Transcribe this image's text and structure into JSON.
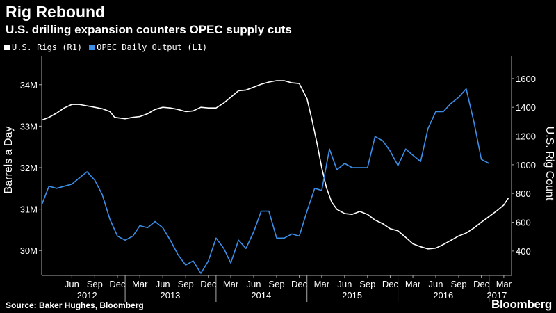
{
  "header": {
    "title": "Rig Rebound",
    "subtitle": "U.S. drilling expansion counters OPEC supply cuts"
  },
  "footer": {
    "source": "Source: Baker Hughes, Bloomberg",
    "brand": "Bloomberg"
  },
  "chart_data": {
    "type": "line",
    "title": "Rig Rebound",
    "subtitle": "U.S. drilling expansion counters OPEC supply cuts",
    "ylabel_left": "Barrels a Day",
    "ylabel_right": "U.S. Rig Count",
    "left_axis": {
      "range": [
        29.4,
        34.6
      ],
      "ticks": [
        30,
        31,
        32,
        33,
        34
      ],
      "tick_labels": [
        "30M",
        "31M",
        "32M",
        "33M",
        "34M"
      ]
    },
    "right_axis": {
      "range": [
        230,
        1730
      ],
      "ticks": [
        400,
        600,
        800,
        1000,
        1200,
        1400,
        1600
      ],
      "tick_labels": [
        "400",
        "600",
        "800",
        "1000",
        "1200",
        "1400",
        "1600"
      ]
    },
    "x_axis": {
      "range": [
        "2012-02",
        "2017-04"
      ],
      "month_ticks": [
        {
          "label": "Jun",
          "date": "2012-06"
        },
        {
          "label": "Sep",
          "date": "2012-09"
        },
        {
          "label": "Dec",
          "date": "2012-12"
        },
        {
          "label": "Mar",
          "date": "2013-03"
        },
        {
          "label": "Jun",
          "date": "2013-06"
        },
        {
          "label": "Sep",
          "date": "2013-09"
        },
        {
          "label": "Dec",
          "date": "2013-12"
        },
        {
          "label": "Mar",
          "date": "2014-03"
        },
        {
          "label": "Jun",
          "date": "2014-06"
        },
        {
          "label": "Sep",
          "date": "2014-09"
        },
        {
          "label": "Dec",
          "date": "2014-12"
        },
        {
          "label": "Mar",
          "date": "2015-03"
        },
        {
          "label": "Jun",
          "date": "2015-06"
        },
        {
          "label": "Sep",
          "date": "2015-09"
        },
        {
          "label": "Dec",
          "date": "2015-12"
        },
        {
          "label": "Mar",
          "date": "2016-03"
        },
        {
          "label": "Jun",
          "date": "2016-06"
        },
        {
          "label": "Sep",
          "date": "2016-09"
        },
        {
          "label": "Dec",
          "date": "2016-12"
        },
        {
          "label": "Mar",
          "date": "2017-03"
        }
      ],
      "year_labels": [
        {
          "label": "2012",
          "date": "2012-08"
        },
        {
          "label": "2013",
          "date": "2013-07"
        },
        {
          "label": "2014",
          "date": "2014-07"
        },
        {
          "label": "2015",
          "date": "2015-07"
        },
        {
          "label": "2016",
          "date": "2016-07"
        },
        {
          "label": "2017",
          "date": "2017-02"
        }
      ]
    },
    "grid": false,
    "legend_position": "top-left",
    "series": [
      {
        "name": "U.S. Rigs (R1)",
        "axis": "right",
        "color": "#ffffff",
        "points": [
          [
            "2012-02-01",
            1310
          ],
          [
            "2012-03-01",
            1330
          ],
          [
            "2012-04-01",
            1360
          ],
          [
            "2012-05-01",
            1395
          ],
          [
            "2012-06-01",
            1420
          ],
          [
            "2012-07-01",
            1420
          ],
          [
            "2012-08-01",
            1410
          ],
          [
            "2012-09-01",
            1400
          ],
          [
            "2012-10-01",
            1390
          ],
          [
            "2012-11-01",
            1370
          ],
          [
            "2012-11-20",
            1330
          ],
          [
            "2012-12-10",
            1325
          ],
          [
            "2013-01-01",
            1320
          ],
          [
            "2013-02-01",
            1330
          ],
          [
            "2013-03-01",
            1335
          ],
          [
            "2013-04-01",
            1355
          ],
          [
            "2013-05-01",
            1385
          ],
          [
            "2013-06-01",
            1400
          ],
          [
            "2013-07-01",
            1395
          ],
          [
            "2013-08-01",
            1385
          ],
          [
            "2013-09-01",
            1370
          ],
          [
            "2013-10-01",
            1375
          ],
          [
            "2013-11-01",
            1400
          ],
          [
            "2013-12-01",
            1395
          ],
          [
            "2014-01-01",
            1395
          ],
          [
            "2014-02-01",
            1430
          ],
          [
            "2014-03-01",
            1470
          ],
          [
            "2014-04-01",
            1515
          ],
          [
            "2014-05-01",
            1520
          ],
          [
            "2014-06-01",
            1540
          ],
          [
            "2014-07-01",
            1560
          ],
          [
            "2014-08-01",
            1575
          ],
          [
            "2014-09-01",
            1585
          ],
          [
            "2014-10-01",
            1585
          ],
          [
            "2014-11-01",
            1570
          ],
          [
            "2014-12-01",
            1565
          ],
          [
            "2015-01-01",
            1460
          ],
          [
            "2015-01-20",
            1320
          ],
          [
            "2015-02-10",
            1150
          ],
          [
            "2015-03-01",
            980
          ],
          [
            "2015-03-20",
            840
          ],
          [
            "2015-04-10",
            740
          ],
          [
            "2015-05-01",
            690
          ],
          [
            "2015-06-01",
            660
          ],
          [
            "2015-07-01",
            655
          ],
          [
            "2015-08-01",
            675
          ],
          [
            "2015-09-01",
            655
          ],
          [
            "2015-10-01",
            615
          ],
          [
            "2015-11-01",
            590
          ],
          [
            "2015-12-01",
            555
          ],
          [
            "2016-01-01",
            540
          ],
          [
            "2016-02-01",
            495
          ],
          [
            "2016-03-01",
            450
          ],
          [
            "2016-04-01",
            430
          ],
          [
            "2016-05-01",
            415
          ],
          [
            "2016-06-01",
            420
          ],
          [
            "2016-07-01",
            445
          ],
          [
            "2016-08-01",
            475
          ],
          [
            "2016-09-01",
            505
          ],
          [
            "2016-10-01",
            525
          ],
          [
            "2016-11-01",
            560
          ],
          [
            "2016-12-01",
            600
          ],
          [
            "2017-01-01",
            640
          ],
          [
            "2017-02-01",
            680
          ],
          [
            "2017-03-01",
            720
          ],
          [
            "2017-03-20",
            770
          ]
        ]
      },
      {
        "name": "OPEC Daily Output (L1)",
        "axis": "left",
        "color": "#3b8fe8",
        "points": [
          [
            "2012-02-01",
            31.1
          ],
          [
            "2012-03-01",
            31.55
          ],
          [
            "2012-04-01",
            31.5
          ],
          [
            "2012-05-01",
            31.55
          ],
          [
            "2012-06-01",
            31.6
          ],
          [
            "2012-07-01",
            31.75
          ],
          [
            "2012-08-01",
            31.9
          ],
          [
            "2012-09-01",
            31.7
          ],
          [
            "2012-10-01",
            31.35
          ],
          [
            "2012-11-01",
            30.75
          ],
          [
            "2012-12-01",
            30.35
          ],
          [
            "2013-01-01",
            30.25
          ],
          [
            "2013-02-01",
            30.35
          ],
          [
            "2013-03-01",
            30.6
          ],
          [
            "2013-04-01",
            30.55
          ],
          [
            "2013-05-01",
            30.7
          ],
          [
            "2013-06-01",
            30.55
          ],
          [
            "2013-07-01",
            30.25
          ],
          [
            "2013-08-01",
            29.9
          ],
          [
            "2013-09-01",
            29.65
          ],
          [
            "2013-10-01",
            29.75
          ],
          [
            "2013-11-01",
            29.45
          ],
          [
            "2013-12-01",
            29.75
          ],
          [
            "2014-01-01",
            30.3
          ],
          [
            "2014-02-01",
            30.05
          ],
          [
            "2014-03-01",
            29.7
          ],
          [
            "2014-04-01",
            30.25
          ],
          [
            "2014-05-01",
            30.05
          ],
          [
            "2014-06-01",
            30.45
          ],
          [
            "2014-07-01",
            30.95
          ],
          [
            "2014-08-01",
            30.95
          ],
          [
            "2014-09-01",
            30.3
          ],
          [
            "2014-10-01",
            30.3
          ],
          [
            "2014-11-01",
            30.4
          ],
          [
            "2014-12-01",
            30.35
          ],
          [
            "2015-01-01",
            30.95
          ],
          [
            "2015-02-01",
            31.5
          ],
          [
            "2015-03-01",
            31.45
          ],
          [
            "2015-04-01",
            32.45
          ],
          [
            "2015-05-01",
            31.95
          ],
          [
            "2015-06-01",
            32.1
          ],
          [
            "2015-07-01",
            32.0
          ],
          [
            "2015-08-01",
            32.0
          ],
          [
            "2015-09-01",
            32.0
          ],
          [
            "2015-10-01",
            32.75
          ],
          [
            "2015-11-01",
            32.65
          ],
          [
            "2015-12-01",
            32.4
          ],
          [
            "2016-01-01",
            32.05
          ],
          [
            "2016-02-01",
            32.45
          ],
          [
            "2016-03-01",
            32.3
          ],
          [
            "2016-04-01",
            32.15
          ],
          [
            "2016-05-01",
            32.95
          ],
          [
            "2016-06-01",
            33.35
          ],
          [
            "2016-07-01",
            33.35
          ],
          [
            "2016-08-01",
            33.55
          ],
          [
            "2016-09-01",
            33.7
          ],
          [
            "2016-10-01",
            33.9
          ],
          [
            "2016-11-01",
            33.1
          ],
          [
            "2016-12-01",
            32.2
          ],
          [
            "2017-01-01",
            32.1
          ]
        ]
      }
    ]
  }
}
